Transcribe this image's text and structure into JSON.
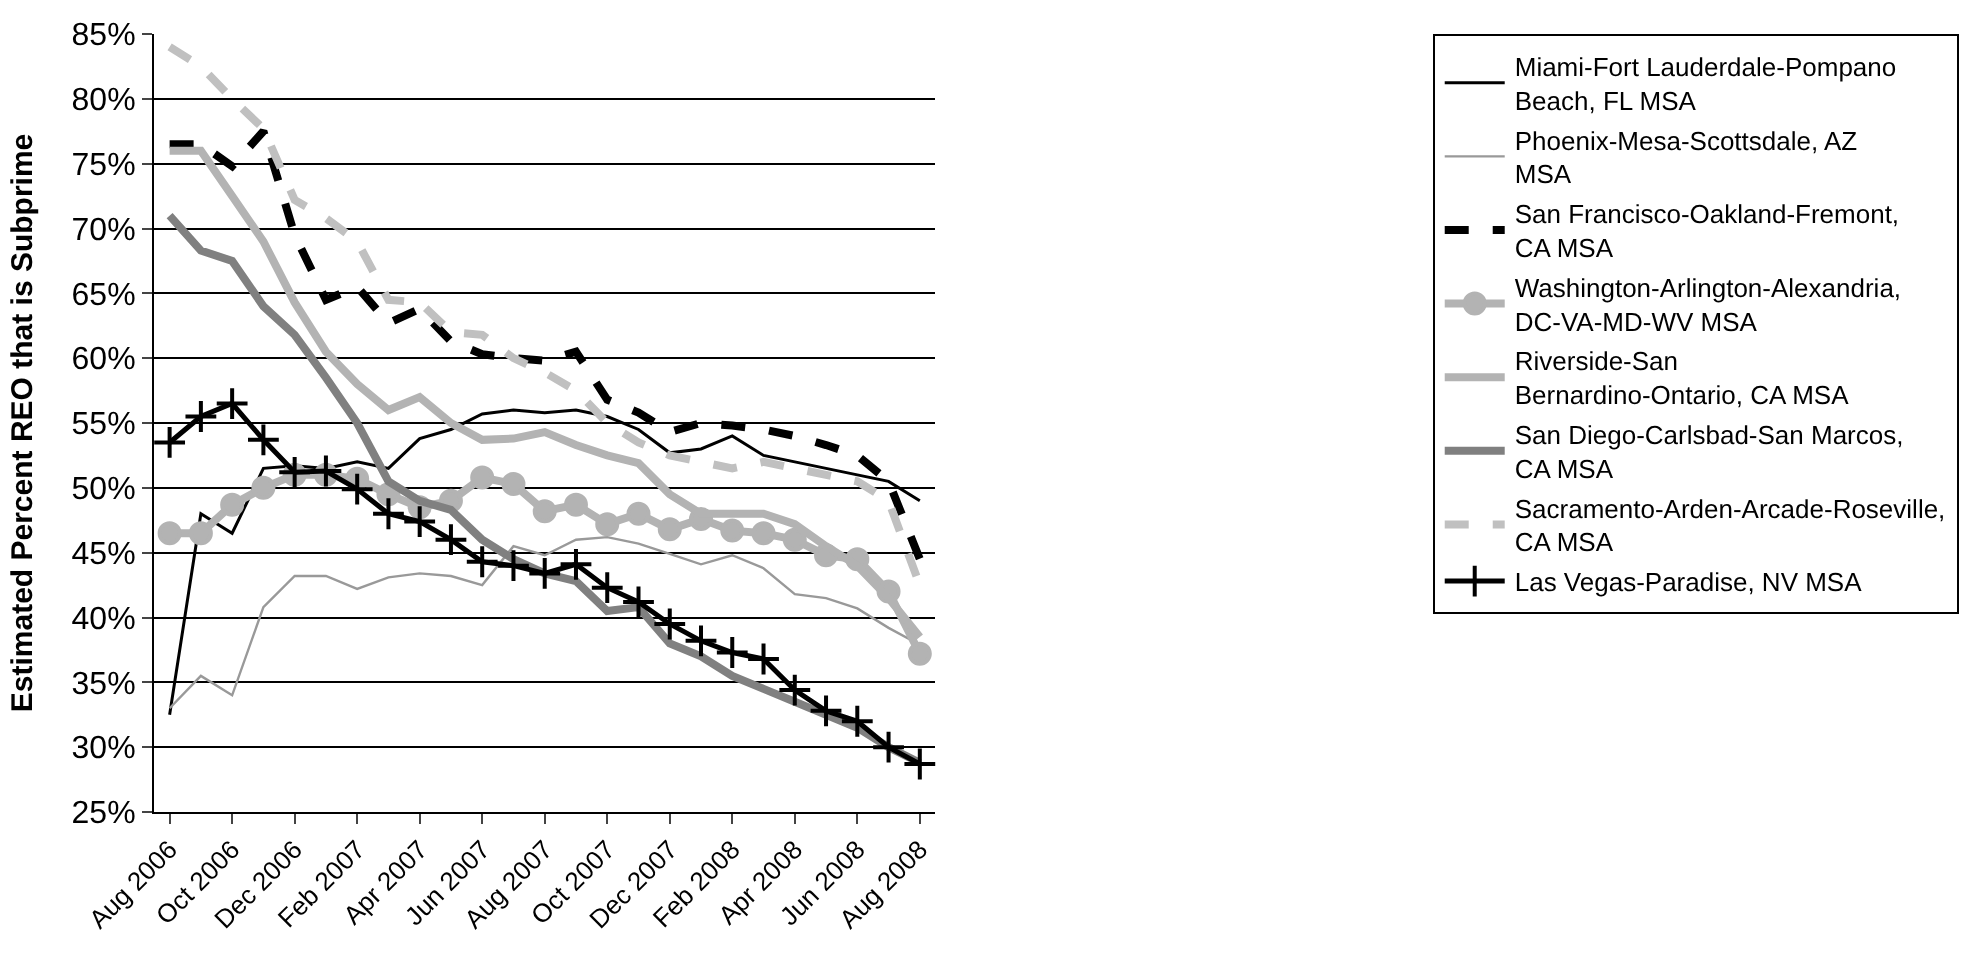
{
  "chart_data": {
    "type": "line",
    "ylabel": "Estimated Percent REO that is Subprime",
    "categories": [
      "Aug 2006",
      null,
      "Oct 2006",
      null,
      "Dec 2006",
      null,
      "Feb 2007",
      null,
      "Apr 2007",
      null,
      "Jun 2007",
      null,
      "Aug 2007",
      null,
      "Oct 2007",
      null,
      "Dec 2007",
      null,
      "Feb 2008",
      null,
      "Apr 2008",
      null,
      "Jun 2008",
      null,
      "Aug 2008"
    ],
    "ylim": [
      25,
      85
    ],
    "yticks": [
      {
        "value": 25,
        "label": "25%"
      },
      {
        "value": 30,
        "label": "30%"
      },
      {
        "value": 35,
        "label": "35%"
      },
      {
        "value": 40,
        "label": "40%"
      },
      {
        "value": 45,
        "label": "45%"
      },
      {
        "value": 50,
        "label": "50%"
      },
      {
        "value": 55,
        "label": "55%"
      },
      {
        "value": 60,
        "label": "60%"
      },
      {
        "value": 65,
        "label": "65%"
      },
      {
        "value": 70,
        "label": "70%"
      },
      {
        "value": 75,
        "label": "75%"
      },
      {
        "value": 80,
        "label": "80%"
      },
      {
        "value": 85,
        "label": "85%"
      }
    ],
    "grid": "y",
    "legend": "right",
    "series": [
      {
        "name": "Miami-Fort Lauderdale-Pompano Beach, FL MSA",
        "color": "#000000",
        "values": [
          32.5,
          48,
          46.5,
          51.5,
          51.7,
          51.5,
          52,
          51.5,
          53.8,
          54.5,
          55.7,
          56,
          55.8,
          56,
          55.5,
          54.5,
          52.7,
          53,
          54,
          52.5,
          52,
          51.5,
          51,
          50.5,
          49
        ]
      },
      {
        "name": "Phoenix-Mesa-Scottsdale, AZ MSA",
        "color": "#999999",
        "values": [
          33,
          35.5,
          34,
          40.8,
          43.2,
          43.2,
          42.2,
          43.1,
          43.4,
          43.2,
          42.5,
          45.5,
          44.8,
          46,
          46.2,
          45.7,
          44.9,
          44.1,
          44.8,
          43.8,
          41.8,
          41.5,
          40.7,
          39.2,
          37.9
        ]
      },
      {
        "name": "San Francisco-Oakland-Fremont, CA MSA",
        "color": "#000000",
        "line_style": "dashed",
        "values": [
          76.5,
          76.5,
          74.8,
          77.5,
          69.5,
          64.5,
          65.5,
          62.7,
          63.8,
          61.3,
          60.3,
          60,
          59.8,
          60.5,
          56.8,
          55.8,
          54.3,
          55,
          54.8,
          54.5,
          54,
          53.3,
          52.5,
          50.5,
          44.5
        ]
      },
      {
        "name": "Washington-Arlington-Alexandria, DC-VA-MD-WV MSA",
        "color": "#b3b3b3",
        "marker": "circle",
        "values": [
          46.5,
          46.5,
          48.7,
          50,
          51,
          51,
          50.7,
          49.5,
          48.5,
          49,
          50.8,
          50.3,
          48.2,
          48.7,
          47.2,
          48,
          46.8,
          47.6,
          46.7,
          46.5,
          46,
          44.8,
          44.5,
          42,
          37.2
        ]
      },
      {
        "name": "Riverside-San Bernardino-Ontario, CA MSA",
        "color": "#b3b3b3",
        "values": [
          76,
          76,
          72.5,
          69,
          64.3,
          60.5,
          58,
          56,
          57,
          55,
          53.7,
          53.8,
          54.3,
          53.3,
          52.5,
          51.9,
          49.5,
          48,
          48,
          48,
          47.2,
          45.5,
          44,
          41.5,
          38.5
        ]
      },
      {
        "name": "San Diego-Carlsbad-San Marcos, CA MSA",
        "color": "#808080",
        "values": [
          71,
          68.3,
          67.5,
          64,
          61.8,
          58.5,
          55,
          50.5,
          49,
          48.3,
          46,
          44.5,
          43.4,
          42.8,
          40.5,
          40.8,
          38,
          37,
          35.5,
          34.5,
          33.5,
          32.5,
          31.5,
          30,
          28.8
        ]
      },
      {
        "name": "Sacramento-Arden-Arcade-Roseville, CA MSA",
        "color": "#c0c0c0",
        "line_style": "dashed",
        "values": [
          84,
          82.5,
          80,
          77.7,
          72.2,
          70.8,
          69,
          64.5,
          64.3,
          62,
          61.8,
          60,
          58.9,
          57.5,
          55,
          53.5,
          52.5,
          52,
          51.5,
          52,
          51.5,
          51,
          50.5,
          49,
          42.5
        ]
      },
      {
        "name": "Las Vegas-Paradise, NV MSA",
        "color": "#000000",
        "marker": "cross",
        "values": [
          53.5,
          55.5,
          56.5,
          53.7,
          51.2,
          51.3,
          49.9,
          48,
          47.4,
          46,
          44.3,
          44,
          43.4,
          44.1,
          42.3,
          41.2,
          39.5,
          38.2,
          37.3,
          36.8,
          34.4,
          32.8,
          32,
          30,
          28.7
        ]
      }
    ]
  }
}
